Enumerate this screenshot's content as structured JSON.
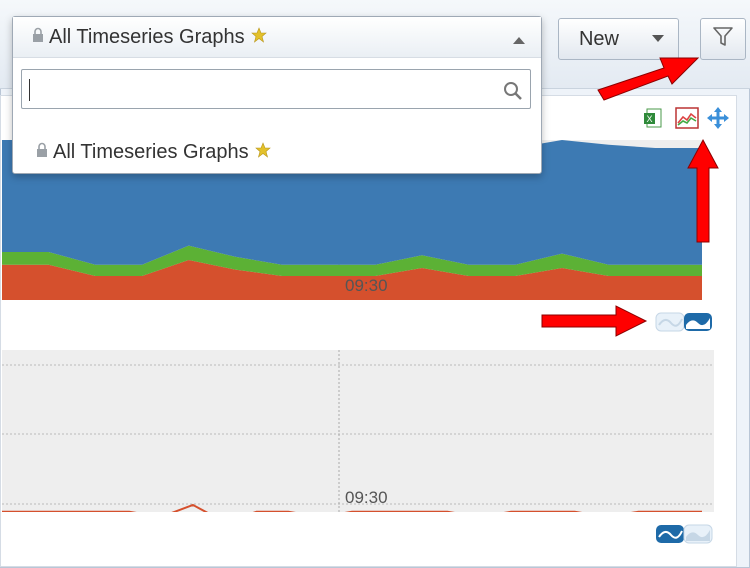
{
  "header": {
    "new_label": "New"
  },
  "graph_picker": {
    "selected_label": "All Timeseries Graphs",
    "search_value": "",
    "items": [
      {
        "label": "All Timeseries Graphs",
        "favorite": true
      }
    ]
  },
  "charts": {
    "top_time_label": "09:30",
    "bottom_time_label": "09:30"
  },
  "colors": {
    "area_blue": "#3d7ab3",
    "area_green": "#5cb135",
    "area_red": "#d5502d",
    "line_red": "#d5502d",
    "annotation_arrow": "#ff0000",
    "favorite_star": "#e3c12b"
  },
  "icons": {
    "filter": "funnel-icon",
    "excel": "excel-export-icon",
    "chart": "line-chart-icon",
    "move": "move-arrows-icon",
    "search": "magnifier-icon",
    "dropdown": "caret-down-icon",
    "lock": "lock-icon",
    "star": "star-icon"
  },
  "chart_data": [
    {
      "type": "area",
      "title": "",
      "xlabel": "",
      "ylabel": "",
      "x_ticks": [
        "09:30"
      ],
      "series": [
        {
          "values": [
            22,
            22,
            15,
            15,
            25,
            19,
            15,
            15,
            15,
            20,
            15,
            15,
            20,
            15,
            15,
            15
          ]
        },
        {
          "values": [
            8,
            8,
            7,
            7,
            9,
            8,
            7,
            7,
            7,
            8,
            7,
            7,
            9,
            7,
            7,
            7
          ]
        },
        {
          "values": [
            70,
            70,
            73,
            73,
            66,
            73,
            73,
            73,
            73,
            72,
            73,
            73,
            71,
            75,
            73,
            73
          ]
        }
      ]
    },
    {
      "type": "line",
      "title": "",
      "xlabel": "",
      "ylabel": "",
      "x_ticks": [
        "09:30"
      ],
      "series": [
        {
          "values": [
            85,
            85,
            85,
            85,
            85,
            82,
            89,
            79,
            85,
            85,
            82,
            85,
            85,
            85,
            85,
            82,
            85,
            85,
            85,
            82,
            85,
            85,
            85
          ]
        }
      ]
    }
  ]
}
